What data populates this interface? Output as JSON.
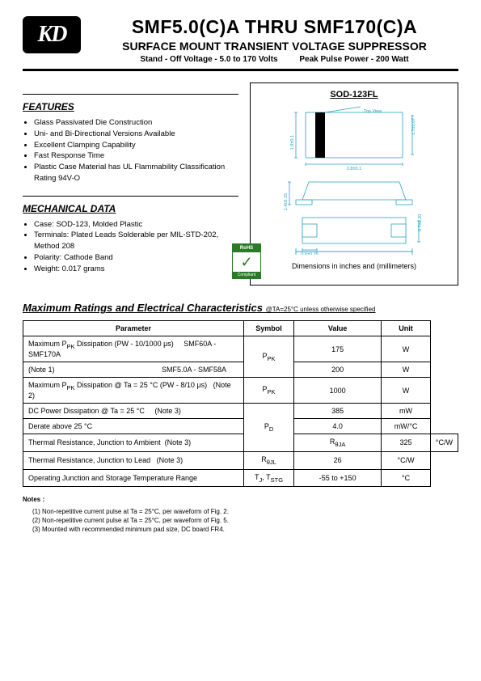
{
  "logo_text": "KD",
  "title": "SMF5.0(C)A  THRU  SMF170(C)A",
  "subtitle": "SURFACE MOUNT TRANSIENT VOLTAGE SUPPRESSOR",
  "subline1": "Stand - Off Voltage - 5.0 to 170 Volts",
  "subline2": "Peak Pulse Power - 200 Watt",
  "features_title": "FEATURES",
  "features": [
    "Glass Passivated Die Construction",
    "Uni- and Bi-Directional Versions Available",
    "Excellent Clamping Capability",
    "Fast Response Time",
    "Plastic Case Material has UL Flammability Classification Rating 94V-O"
  ],
  "mech_title": "MECHANICAL DATA",
  "mech": [
    "Case: SOD-123, Molded Plastic",
    "Terminals: Plated Leads Solderable per MIL-STD-202, Method 208",
    "Polarity: Cathode Band",
    "Weight: 0.017 grams"
  ],
  "package_name": "SOD-123FL",
  "dim_note": "Dimensions in inches and (millimeters)",
  "rohs_top": "RoHS",
  "rohs_bot": "Compliant",
  "ratings_title": "Maximum Ratings and Electrical Characteristics",
  "ratings_cond": "@TA=25°C unless otherwise specified",
  "table": {
    "headers": [
      "Parameter",
      "Symbol",
      "Value",
      "Unit"
    ],
    "rows": [
      {
        "param": "Maximum P<sub>PK</sub> Dissipation (PW - 10/1000 μs) &nbsp;&nbsp;&nbsp; SMF60A - SMF170A",
        "sym": "P<sub>PK</sub>",
        "val": "175",
        "unit": "W",
        "rowspan_sym": 2
      },
      {
        "param": "(Note 1)&nbsp;&nbsp;&nbsp;&nbsp;&nbsp;&nbsp;&nbsp;&nbsp;&nbsp;&nbsp;&nbsp;&nbsp;&nbsp;&nbsp;&nbsp;&nbsp;&nbsp;&nbsp;&nbsp;&nbsp;&nbsp;&nbsp;&nbsp;&nbsp;&nbsp;&nbsp;&nbsp;&nbsp;&nbsp;&nbsp;&nbsp;&nbsp;&nbsp;&nbsp;&nbsp;&nbsp;&nbsp;&nbsp;&nbsp;&nbsp;&nbsp;&nbsp;&nbsp;&nbsp;&nbsp;&nbsp;&nbsp;&nbsp;&nbsp;&nbsp;&nbsp;&nbsp; SMF5.0A - SMF58A",
        "sym": "",
        "val": "200",
        "unit": "W"
      },
      {
        "param": "Maximum P<sub>PK</sub> Dissipation @ Ta = 25 °C (PW - 8/10 μs) &nbsp; (Note 2)",
        "sym": "P<sub>PK</sub>",
        "val": "1000",
        "unit": "W"
      },
      {
        "param": "DC Power Dissipation @ Ta = 25 °C &nbsp;&nbsp;&nbsp; (Note 3)",
        "sym": "P<sub>D</sub>",
        "val": "385",
        "unit": "mW",
        "rowspan_sym": 3
      },
      {
        "param": "Derate above  25 °C",
        "sym": "",
        "val": "4.0",
        "unit": "mW/°C"
      },
      {
        "param": "Thermal Resistance, Junction to Ambient &nbsp;(Note 3)",
        "sym": "R<sub>θJA</sub>",
        "val": "325",
        "unit": "°C/W"
      },
      {
        "param": "Thermal Resistance, Junction to Lead &nbsp;&nbsp;(Note 3)",
        "sym": "R<sub>θJL</sub>",
        "val": "26",
        "unit": "°C/W"
      },
      {
        "param": "Operating Junction and Storage Temperature Range",
        "sym": "T<sub>J</sub>, T<sub>STG</sub>",
        "val": "-55 to +150",
        "unit": "°C"
      }
    ]
  },
  "notes_title": "Notes :",
  "notes": [
    "(1) Non-repetitive current pulse at Ta = 25°C, per waveform of Fig. 2.",
    "(2) Non-repetitive current pulse at Ta = 25°C, per waveform of Fig. 5.",
    "(3) Mounted with recommended minimum pad size, DC board FR4."
  ],
  "diagram": {
    "top_view_label": "Cathode Band\nTop View",
    "dims": {
      "body_w": "2.8±0.1",
      "body_h_left": "1.9±0.1",
      "body_h_right": "1.7±0.07",
      "side_h": "1.4±0.15",
      "bot_h_right": "0.7±0.20",
      "pad_w": "0.6±0.25",
      "overall_w": "3.7±0.2"
    },
    "colors": {
      "stroke": "#2aa0c0",
      "text": "#2aa0c0",
      "band": "#000000"
    }
  }
}
